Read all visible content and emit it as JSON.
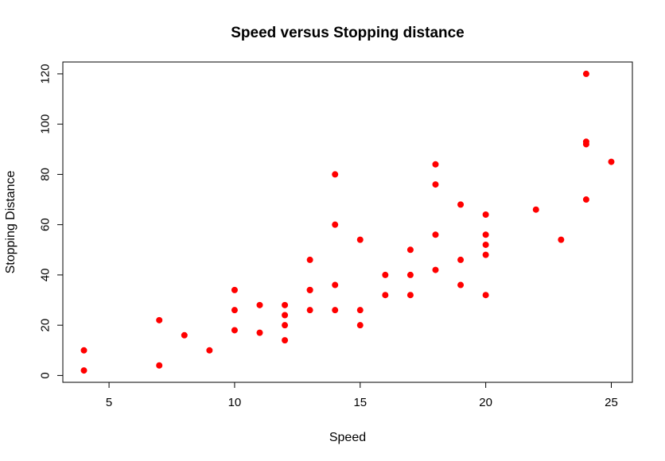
{
  "chart_data": {
    "type": "scatter",
    "title": "Speed versus Stopping distance",
    "xlabel": "Speed",
    "ylabel": "Stopping Distance",
    "xlim": [
      4,
      25
    ],
    "ylim": [
      2,
      120
    ],
    "x_ticks": [
      "5",
      "10",
      "15",
      "20",
      "25"
    ],
    "y_ticks": [
      "0",
      "20",
      "40",
      "60",
      "80",
      "100",
      "120"
    ],
    "grid": false,
    "legend": "none",
    "marker_color": "#ff0000",
    "points": [
      [
        4,
        2
      ],
      [
        4,
        10
      ],
      [
        7,
        4
      ],
      [
        7,
        22
      ],
      [
        8,
        16
      ],
      [
        9,
        10
      ],
      [
        10,
        18
      ],
      [
        10,
        26
      ],
      [
        10,
        34
      ],
      [
        11,
        17
      ],
      [
        11,
        28
      ],
      [
        12,
        14
      ],
      [
        12,
        20
      ],
      [
        12,
        24
      ],
      [
        12,
        28
      ],
      [
        13,
        26
      ],
      [
        13,
        34
      ],
      [
        13,
        34
      ],
      [
        13,
        46
      ],
      [
        14,
        26
      ],
      [
        14,
        36
      ],
      [
        14,
        60
      ],
      [
        14,
        80
      ],
      [
        15,
        20
      ],
      [
        15,
        26
      ],
      [
        15,
        54
      ],
      [
        16,
        32
      ],
      [
        16,
        40
      ],
      [
        17,
        32
      ],
      [
        17,
        40
      ],
      [
        17,
        50
      ],
      [
        18,
        42
      ],
      [
        18,
        56
      ],
      [
        18,
        76
      ],
      [
        18,
        84
      ],
      [
        19,
        36
      ],
      [
        19,
        46
      ],
      [
        19,
        68
      ],
      [
        20,
        32
      ],
      [
        20,
        48
      ],
      [
        20,
        52
      ],
      [
        20,
        56
      ],
      [
        20,
        64
      ],
      [
        22,
        66
      ],
      [
        23,
        54
      ],
      [
        24,
        70
      ],
      [
        24,
        92
      ],
      [
        24,
        93
      ],
      [
        24,
        120
      ],
      [
        25,
        85
      ]
    ]
  }
}
